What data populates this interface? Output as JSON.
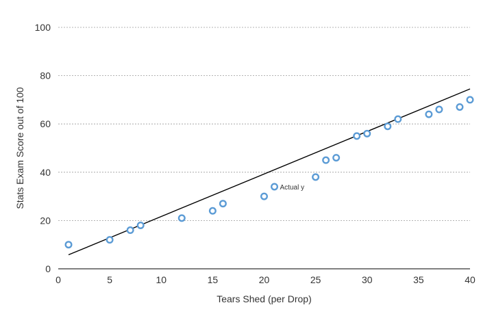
{
  "chart_data": {
    "type": "scatter",
    "xlabel": "Tears Shed (per Drop)",
    "ylabel": "Stats Exam Score out of 100",
    "xlim": [
      0,
      40
    ],
    "ylim": [
      0,
      100
    ],
    "x_ticks": [
      "0",
      "5",
      "10",
      "15",
      "20",
      "25",
      "30",
      "35",
      "40"
    ],
    "y_ticks": [
      "0",
      "20",
      "40",
      "60",
      "80",
      "100"
    ],
    "grid": true,
    "point_color": "#5b9bd5",
    "series": [
      {
        "points": [
          [
            1,
            10
          ],
          [
            5,
            12
          ],
          [
            7,
            16
          ],
          [
            8,
            18
          ],
          [
            12,
            21
          ],
          [
            15,
            24
          ],
          [
            16,
            27
          ],
          [
            20,
            30
          ],
          [
            21,
            34
          ],
          [
            25,
            38
          ],
          [
            26,
            45
          ],
          [
            27,
            46
          ],
          [
            29,
            55
          ],
          [
            30,
            56
          ],
          [
            32,
            59
          ],
          [
            33,
            62
          ],
          [
            36,
            64
          ],
          [
            37,
            66
          ],
          [
            39,
            67
          ],
          [
            40,
            70
          ]
        ]
      }
    ],
    "trendline": {
      "x": [
        1,
        40
      ],
      "y": [
        5.8,
        74.5
      ]
    },
    "annotations": [
      {
        "text": "Actual y",
        "x": 21,
        "y": 34
      }
    ]
  }
}
